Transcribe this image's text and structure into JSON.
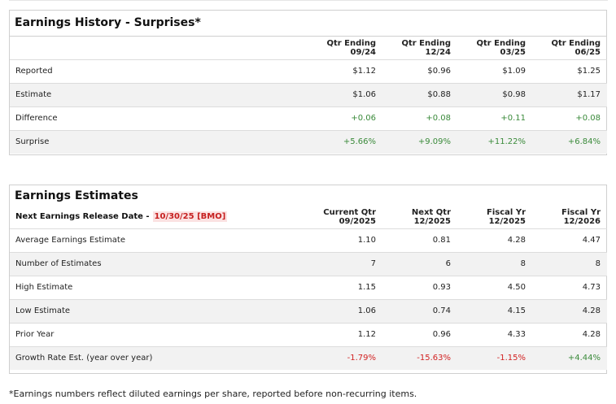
{
  "history": {
    "title": "Earnings History - Surprises*",
    "columns": [
      {
        "line1": "Qtr Ending",
        "line2": "09/24"
      },
      {
        "line1": "Qtr Ending",
        "line2": "12/24"
      },
      {
        "line1": "Qtr Ending",
        "line2": "03/25"
      },
      {
        "line1": "Qtr Ending",
        "line2": "06/25"
      }
    ],
    "rows": [
      {
        "label": "Reported",
        "values": [
          "$1.12",
          "$0.96",
          "$1.09",
          "$1.25"
        ]
      },
      {
        "label": "Estimate",
        "values": [
          "$1.06",
          "$0.88",
          "$0.98",
          "$1.17"
        ]
      },
      {
        "label": "Difference",
        "values": [
          "+0.06",
          "+0.08",
          "+0.11",
          "+0.08"
        ]
      },
      {
        "label": "Surprise",
        "values": [
          "+5.66%",
          "+9.09%",
          "+11.22%",
          "+6.84%"
        ]
      }
    ]
  },
  "estimates": {
    "title": "Earnings Estimates",
    "release_label": "Next Earnings Release Date -",
    "release_date": "10/30/25 [BMO]",
    "columns": [
      {
        "line1": "Current Qtr",
        "line2": "09/2025"
      },
      {
        "line1": "Next Qtr",
        "line2": "12/2025"
      },
      {
        "line1": "Fiscal Yr",
        "line2": "12/2025"
      },
      {
        "line1": "Fiscal Yr",
        "line2": "12/2026"
      }
    ],
    "rows": [
      {
        "label": "Average Earnings Estimate",
        "values": [
          "1.10",
          "0.81",
          "4.28",
          "4.47"
        ]
      },
      {
        "label": "Number of Estimates",
        "values": [
          "7",
          "6",
          "8",
          "8"
        ]
      },
      {
        "label": "High Estimate",
        "values": [
          "1.15",
          "0.93",
          "4.50",
          "4.73"
        ]
      },
      {
        "label": "Low Estimate",
        "values": [
          "1.06",
          "0.74",
          "4.15",
          "4.28"
        ]
      },
      {
        "label": "Prior Year",
        "values": [
          "1.12",
          "0.96",
          "4.33",
          "4.28"
        ]
      },
      {
        "label": "Growth Rate Est. (year over year)",
        "values": [
          "-1.79%",
          "-15.63%",
          "-1.15%",
          "+4.44%"
        ]
      }
    ]
  },
  "footnote": "*Earnings numbers reflect diluted earnings per share, reported before non-recurring items.",
  "colors": {
    "positive": "#3a8a3a",
    "negative": "#d22222",
    "badge_bg": "#fbe2e2"
  }
}
